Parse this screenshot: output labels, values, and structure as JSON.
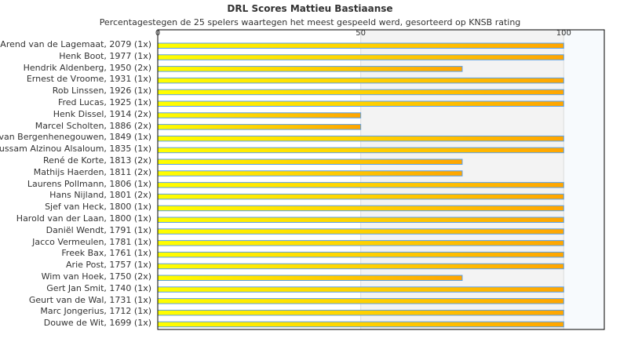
{
  "chart_data": {
    "type": "bar",
    "orientation": "horizontal",
    "title": "DRL Scores Mattieu Bastiaanse",
    "subtitle": "Percentagestegen de 25 spelers waartegen het meest gespeeld werd, gesorteerd op KNSB rating",
    "xlim": [
      0,
      110
    ],
    "xticks": [
      0,
      50,
      100
    ],
    "categories": [
      "Arend van de Lagemaat, 2079 (1x)",
      "Henk Boot, 1977 (1x)",
      "Hendrik Aldenberg, 1950 (2x)",
      "Ernest de Vroome, 1931 (1x)",
      "Rob Linssen, 1926 (1x)",
      "Fred Lucas, 1925 (1x)",
      "Henk Dissel, 1914 (2x)",
      "Marcel Scholten, 1886 (2x)",
      "van Bergenhenegouwen, 1849 (1x)",
      "lussam Alzinou Alsaloum, 1835 (1x)",
      "René de Korte, 1813 (2x)",
      "Mathijs Haerden, 1811 (2x)",
      "Laurens Pollmann, 1806 (1x)",
      "Hans Nijland, 1801 (2x)",
      "Sjef van Heck, 1800 (1x)",
      "Harold van der Laan, 1800 (1x)",
      "Daniël Wendt, 1791 (1x)",
      "Jacco Vermeulen, 1781 (1x)",
      "Freek Bax, 1761 (1x)",
      "Arie Post, 1757 (1x)",
      "Wim van Hoek, 1750 (2x)",
      "Gert Jan Smit, 1740 (1x)",
      "Geurt van de Wal, 1731 (1x)",
      "Marc Jongerius, 1712 (1x)",
      "Douwe de Wit, 1699 (1x)"
    ],
    "values": [
      100,
      100,
      75,
      100,
      100,
      100,
      50,
      50,
      100,
      100,
      75,
      75,
      100,
      100,
      100,
      100,
      100,
      100,
      100,
      100,
      75,
      100,
      100,
      100,
      100
    ],
    "colors": {
      "bar_start": "#ffff00",
      "bar_end": "#ffa500",
      "bar_border": "#5aa0e8",
      "band_mid": "#f3f3f3",
      "band_high": "#f7fafd"
    }
  }
}
